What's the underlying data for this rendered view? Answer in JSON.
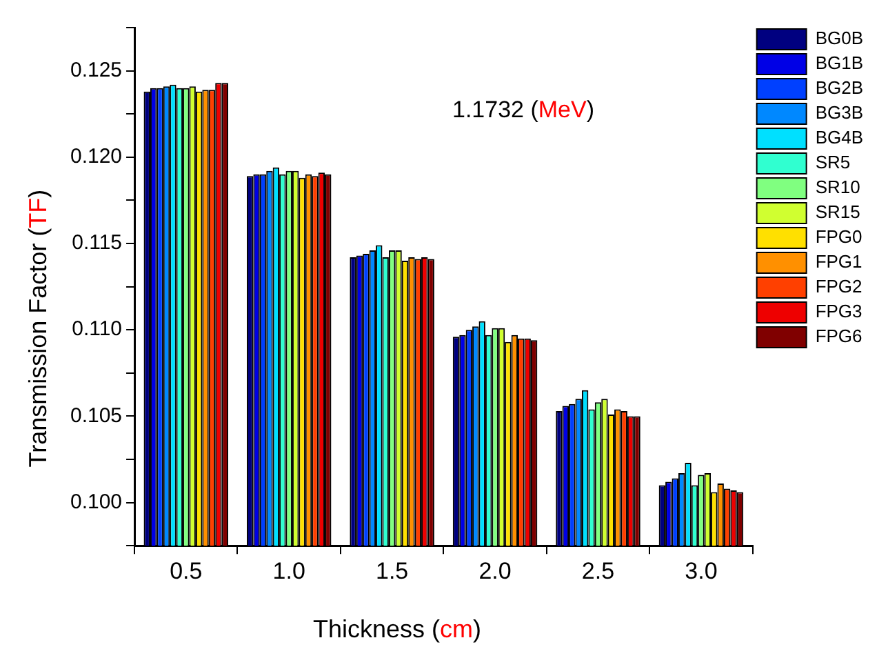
{
  "chart_data": {
    "type": "bar",
    "xlabel": "Thickness (cm)",
    "ylabel": "Transmission Factor (TF)",
    "annotations": [
      "1.1732 (MeV)"
    ],
    "categories": [
      "0.5",
      "1.0",
      "1.5",
      "2.0",
      "2.5",
      "3.0"
    ],
    "ylim": [
      0.0975,
      0.1275
    ],
    "yticks": [
      {
        "value": 0.0975,
        "label": null
      },
      {
        "value": 0.1,
        "label": "0.100"
      },
      {
        "value": 0.1025,
        "label": null
      },
      {
        "value": 0.105,
        "label": "0.105"
      },
      {
        "value": 0.1075,
        "label": null
      },
      {
        "value": 0.11,
        "label": "0.110"
      },
      {
        "value": 0.1125,
        "label": null
      },
      {
        "value": 0.115,
        "label": "0.115"
      },
      {
        "value": 0.1175,
        "label": null
      },
      {
        "value": 0.12,
        "label": "0.120"
      },
      {
        "value": 0.1225,
        "label": null
      },
      {
        "value": 0.125,
        "label": "0.125"
      },
      {
        "value": 0.1275,
        "label": null
      }
    ],
    "grid": false,
    "legend": "right",
    "series": [
      {
        "name": "BG0B",
        "color": "#000080",
        "values": [
          0.1238,
          0.1189,
          0.1142,
          0.1096,
          0.1053,
          0.101
        ]
      },
      {
        "name": "BG1B",
        "color": "#0000e6",
        "values": [
          0.124,
          0.119,
          0.1143,
          0.1097,
          0.1056,
          0.1012
        ]
      },
      {
        "name": "BG2B",
        "color": "#0040ff",
        "values": [
          0.124,
          0.119,
          0.1144,
          0.11,
          0.1057,
          0.1014
        ]
      },
      {
        "name": "BG3B",
        "color": "#0088ff",
        "values": [
          0.1241,
          0.1192,
          0.1146,
          0.1102,
          0.106,
          0.1017
        ]
      },
      {
        "name": "BG4B",
        "color": "#00e0ff",
        "values": [
          0.1242,
          0.1194,
          0.1149,
          0.1105,
          0.1065,
          0.1023
        ]
      },
      {
        "name": "SR5",
        "color": "#30ffd0",
        "values": [
          0.124,
          0.119,
          0.1142,
          0.1097,
          0.1054,
          0.101
        ]
      },
      {
        "name": "SR10",
        "color": "#80ff80",
        "values": [
          0.124,
          0.1192,
          0.1146,
          0.1101,
          0.1058,
          0.1016
        ]
      },
      {
        "name": "SR15",
        "color": "#d0ff30",
        "values": [
          0.1241,
          0.1192,
          0.1146,
          0.1101,
          0.106,
          0.1017
        ]
      },
      {
        "name": "FPG0",
        "color": "#ffe000",
        "values": [
          0.1238,
          0.1188,
          0.114,
          0.1093,
          0.1051,
          0.1006
        ]
      },
      {
        "name": "FPG1",
        "color": "#ff9000",
        "values": [
          0.1239,
          0.119,
          0.1142,
          0.1097,
          0.1054,
          0.1011
        ]
      },
      {
        "name": "FPG2",
        "color": "#ff4000",
        "values": [
          0.1239,
          0.1189,
          0.1141,
          0.1095,
          0.1053,
          0.1008
        ]
      },
      {
        "name": "FPG3",
        "color": "#ee0000",
        "values": [
          0.1243,
          0.1191,
          0.1142,
          0.1095,
          0.105,
          0.1007
        ]
      },
      {
        "name": "FPG6",
        "color": "#800000",
        "values": [
          0.1243,
          0.119,
          0.1141,
          0.1094,
          0.105,
          0.1006
        ]
      }
    ]
  }
}
